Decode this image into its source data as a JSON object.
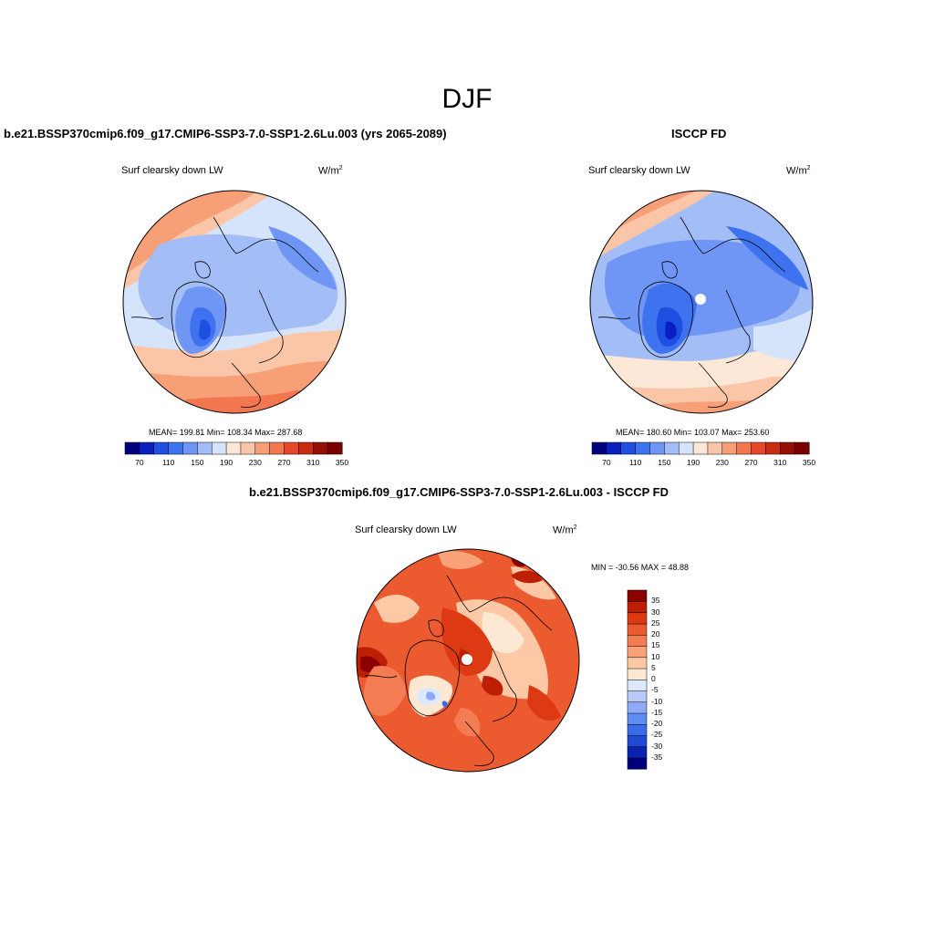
{
  "figure": {
    "title": "DJF",
    "units_base": "W/m",
    "units_exp": "2"
  },
  "panels": [
    {
      "title": "b.e21.BSSP370cmip6.f09_g17.CMIP6-SSP3-7.0-SSP1-2.6Lu.003 (yrs 2065-2089)",
      "variable": "Surf clearsky down LW",
      "stats_text": "MEAN= 199.81  Min= 108.34  Max= 287.68",
      "mean": 199.81,
      "min": 108.34,
      "max": 287.68
    },
    {
      "title": "ISCCP FD",
      "variable": "Surf clearsky down LW",
      "stats_text": "MEAN= 180.60  Min= 103.07  Max= 253.60",
      "mean": 180.6,
      "min": 103.07,
      "max": 253.6
    },
    {
      "title": "b.e21.BSSP370cmip6.f09_g17.CMIP6-SSP3-7.0-SSP1-2.6Lu.003 - ISCCP FD",
      "variable": "Surf clearsky down LW",
      "stats_text": "MIN = -30.56 MAX =  48.88",
      "min": -30.56,
      "max": 48.88
    }
  ],
  "colorbars": {
    "absolute": {
      "colors": [
        "#00007f",
        "#0a1fbf",
        "#1d4fe0",
        "#3f72ee",
        "#6f96f5",
        "#a3bdf7",
        "#d6e4fb",
        "#fde7d6",
        "#fbc6a8",
        "#f7a078",
        "#f27650",
        "#e8482a",
        "#c92a12",
        "#960f05",
        "#7a0000"
      ],
      "tick_labels": [
        "70",
        "110",
        "150",
        "190",
        "230",
        "270",
        "310",
        "350"
      ]
    },
    "difference": {
      "colors": [
        "#00007f",
        "#0a23b0",
        "#1f4bd6",
        "#3a6cea",
        "#5f8cf2",
        "#8caaf5",
        "#b8cbf8",
        "#dce8fb",
        "#fde8d3",
        "#fcc8a6",
        "#f9a27a",
        "#f47c52",
        "#ec5a2f",
        "#dd3a14",
        "#bd1f05",
        "#8b0000"
      ],
      "tick_labels": [
        "35",
        "30",
        "25",
        "20",
        "15",
        "10",
        "5",
        "0",
        "-5",
        "-10",
        "-15",
        "-20",
        "-25",
        "-30",
        "-35"
      ]
    }
  },
  "chart_data": [
    {
      "type": "heatmap",
      "title": "b.e21.BSSP370cmip6.f09_g17.CMIP6-SSP3-7.0-SSP1-2.6Lu.003 (yrs 2065-2089)",
      "field": "Surf clearsky down LW",
      "units": "W/m2",
      "projection": "north polar stereographic",
      "contour_levels": [
        70,
        90,
        110,
        130,
        150,
        170,
        190,
        210,
        230,
        250,
        270,
        290,
        310,
        330,
        350
      ],
      "mean": 199.81,
      "min": 108.34,
      "max": 287.68
    },
    {
      "type": "heatmap",
      "title": "ISCCP FD",
      "field": "Surf clearsky down LW",
      "units": "W/m2",
      "projection": "north polar stereographic",
      "contour_levels": [
        70,
        90,
        110,
        130,
        150,
        170,
        190,
        210,
        230,
        250,
        270,
        290,
        310,
        330,
        350
      ],
      "mean": 180.6,
      "min": 103.07,
      "max": 253.6
    },
    {
      "type": "heatmap",
      "title": "b.e21.BSSP370cmip6.f09_g17.CMIP6-SSP3-7.0-SSP1-2.6Lu.003 - ISCCP FD",
      "field": "Surf clearsky down LW",
      "units": "W/m2",
      "projection": "north polar stereographic",
      "contour_levels": [
        -35,
        -30,
        -25,
        -20,
        -15,
        -10,
        -5,
        0,
        5,
        10,
        15,
        20,
        25,
        30,
        35
      ],
      "min": -30.56,
      "max": 48.88
    }
  ]
}
